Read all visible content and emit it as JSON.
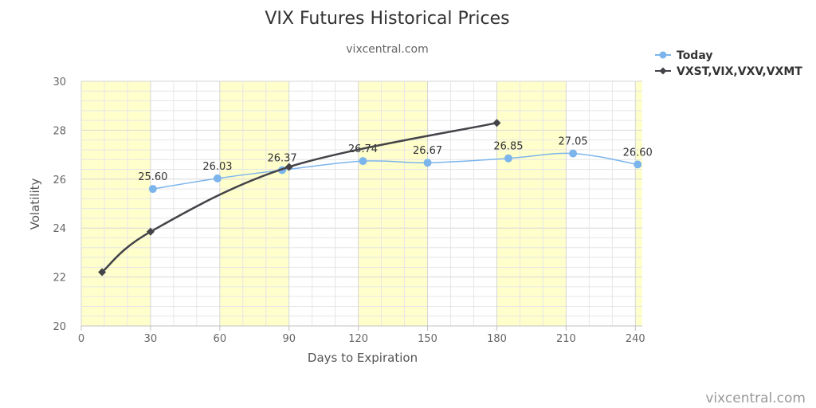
{
  "chart_data": {
    "type": "line",
    "title": "VIX Futures Historical Prices",
    "subtitle": "vixcentral.com",
    "xlabel": "Days to Expiration",
    "ylabel": "Volatility",
    "xlim": [
      0,
      243
    ],
    "ylim": [
      20,
      30
    ],
    "x_ticks": [
      0,
      30,
      60,
      90,
      120,
      150,
      180,
      210,
      240
    ],
    "y_ticks": [
      20,
      22,
      24,
      26,
      28,
      30
    ],
    "grid": true,
    "shaded_x_bands": [
      [
        0,
        30
      ],
      [
        60,
        90
      ],
      [
        120,
        150
      ],
      [
        180,
        210
      ],
      [
        240,
        243
      ]
    ],
    "legend_position": "top-right",
    "series": [
      {
        "name": "Today",
        "color": "#7cb5ec",
        "marker": "circle",
        "show_labels": true,
        "x": [
          31,
          59,
          87,
          122,
          150,
          185,
          213,
          241
        ],
        "y": [
          25.6,
          26.03,
          26.37,
          26.74,
          26.67,
          26.85,
          27.05,
          26.6
        ],
        "labels": [
          "25.60",
          "26.03",
          "26.37",
          "26.74",
          "26.67",
          "26.85",
          "27.05",
          "26.60"
        ]
      },
      {
        "name": "VXST,VIX,VXV,VXMT",
        "color": "#434348",
        "marker": "diamond",
        "show_labels": false,
        "x": [
          9,
          30,
          90,
          180
        ],
        "y": [
          22.2,
          23.85,
          26.5,
          28.3
        ]
      }
    ],
    "credits": "vixcentral.com"
  }
}
